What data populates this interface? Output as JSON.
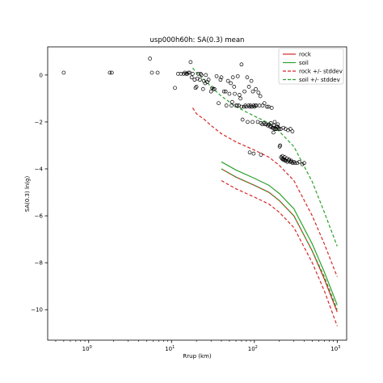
{
  "chart_data": {
    "type": "scatter",
    "title": "usp000h60h: SA(0.3) mean",
    "xlabel": "Rrup (km)",
    "ylabel": "SA(0.3) ln(g)",
    "xscale": "log",
    "xlim": [
      0.32,
      1300
    ],
    "ylim": [
      -11.3,
      1.2
    ],
    "xticks": [
      1,
      10,
      100,
      1000
    ],
    "xtick_labels": [
      "10^0",
      "10^1",
      "10^2",
      "10^3"
    ],
    "yticks": [
      0,
      -2,
      -4,
      -6,
      -8,
      -10
    ],
    "ytick_labels": [
      "0",
      "−2",
      "−4",
      "−6",
      "−8",
      "−10"
    ],
    "grid": false,
    "legend_position": "top-right",
    "series": [
      {
        "name": "rock",
        "kind": "line",
        "color": "#d62728",
        "dash": "solid",
        "x": [
          40,
          60,
          100,
          150,
          200,
          300,
          500,
          700,
          1000
        ],
        "y": [
          -4.0,
          -4.35,
          -4.7,
          -5.0,
          -5.35,
          -6.0,
          -7.5,
          -8.7,
          -10.1
        ]
      },
      {
        "name": "soil",
        "kind": "line",
        "color": "#2ca02c",
        "dash": "solid",
        "x": [
          40,
          60,
          100,
          150,
          200,
          300,
          500,
          700,
          1000
        ],
        "y": [
          -3.7,
          -4.05,
          -4.4,
          -4.7,
          -5.05,
          -5.7,
          -7.2,
          -8.4,
          -9.8
        ]
      },
      {
        "name": "rock +/- stddev",
        "kind": "line",
        "color": "#d62728",
        "dash": "dashed",
        "x": [
          18,
          20,
          25,
          30,
          40,
          60,
          100,
          150,
          200,
          300,
          500,
          700,
          1000
        ],
        "y": [
          -1.4,
          -1.65,
          -1.9,
          -2.15,
          -2.5,
          -2.85,
          -3.2,
          -3.5,
          -3.85,
          -4.5,
          -6.0,
          -7.2,
          -8.6
        ]
      },
      {
        "name": "rock +/- stddev lower",
        "kind": "line",
        "color": "#d62728",
        "dash": "dashed",
        "x": [
          40,
          60,
          100,
          150,
          200,
          300,
          500,
          700,
          1000
        ],
        "y": [
          -4.5,
          -4.85,
          -5.2,
          -5.5,
          -5.85,
          -6.5,
          -8.0,
          -9.2,
          -10.7
        ]
      },
      {
        "name": "soil +/- stddev",
        "kind": "line",
        "color": "#2ca02c",
        "dash": "dashed",
        "x": [
          18,
          20,
          25,
          30,
          40,
          60,
          100,
          150,
          200,
          300,
          500,
          700,
          1000
        ],
        "y": [
          0.3,
          0.1,
          -0.2,
          -0.5,
          -0.9,
          -1.35,
          -1.75,
          -2.05,
          -2.4,
          -3.05,
          -4.55,
          -5.85,
          -7.3
        ]
      },
      {
        "name": "soil +/- stddev lower",
        "kind": "line",
        "color": "#2ca02c",
        "dash": "dashed",
        "x": [
          40,
          60,
          100,
          150,
          200,
          300,
          500,
          700,
          1000
        ],
        "y": [
          -4.0,
          -4.35,
          -4.7,
          -5.0,
          -5.35,
          -6.0,
          -7.5,
          -8.6,
          -10.0
        ]
      },
      {
        "name": "",
        "kind": "scatter",
        "color": "#000000",
        "x": [
          0.5,
          1.8,
          1.9,
          5.5,
          5.8,
          6.8,
          12,
          13,
          14,
          14.5,
          15,
          15.5,
          16,
          17,
          18,
          19,
          20,
          21,
          22,
          23,
          24,
          26,
          28,
          30,
          32,
          35,
          37,
          40,
          43,
          46,
          50,
          53,
          55,
          58,
          60,
          62,
          65,
          68,
          70,
          72,
          75,
          78,
          80,
          83,
          85,
          88,
          90,
          93,
          95,
          98,
          100,
          103,
          106,
          110,
          115,
          120,
          125,
          130,
          135,
          140,
          145,
          150,
          155,
          160,
          165,
          170,
          175,
          180,
          185,
          190,
          195,
          200,
          205,
          210,
          215,
          220,
          225,
          230,
          235,
          240,
          250,
          260,
          270,
          280,
          290,
          300,
          310,
          330,
          350,
          380,
          400,
          11,
          16.5,
          19.5,
          22.5,
          27,
          33,
          45,
          52,
          63,
          76,
          92,
          104,
          118,
          132,
          148,
          162,
          176,
          192,
          208,
          224,
          238,
          255,
          272,
          288,
          17.5,
          24.5,
          31,
          39,
          48,
          57,
          66,
          86,
          96,
          112,
          126,
          142,
          158,
          172,
          186,
          202,
          218,
          232,
          246,
          262,
          278,
          98,
          88,
          120,
          170,
          70,
          20.5,
          25.5,
          54,
          82
        ],
        "y": [
          0.1,
          0.1,
          0.1,
          0.7,
          0.1,
          0.1,
          0.05,
          0.05,
          0.05,
          0.1,
          0.05,
          0.05,
          0.1,
          0.55,
          0.05,
          -0.2,
          -0.5,
          0.05,
          -0.2,
          0.0,
          -0.6,
          0.0,
          -0.2,
          -0.7,
          -0.6,
          -0.05,
          -1.2,
          -0.1,
          -0.7,
          -1.3,
          -0.8,
          -1.3,
          -0.1,
          -0.8,
          -1.3,
          -1.3,
          -1.3,
          -1.0,
          -1.35,
          -1.9,
          -1.35,
          -1.3,
          -1.35,
          -2.0,
          -1.3,
          -1.35,
          -1.3,
          -1.35,
          -2.0,
          -1.3,
          -1.35,
          -1.3,
          -1.3,
          -2.0,
          -1.3,
          -2.05,
          -2.1,
          -2.05,
          -2.1,
          -2.1,
          -2.15,
          -2.1,
          -2.2,
          -2.2,
          -2.25,
          -2.25,
          -2.3,
          -2.3,
          -2.3,
          -2.2,
          -2.25,
          -2.3,
          -3.0,
          -3.5,
          -3.55,
          -3.6,
          -3.6,
          -3.6,
          -3.65,
          -3.65,
          -3.7,
          -3.65,
          -3.7,
          -3.7,
          -3.75,
          -3.7,
          -3.75,
          -3.75,
          -3.7,
          -3.8,
          -3.75,
          -0.55,
          0.1,
          -0.55,
          0.05,
          -0.3,
          -0.6,
          -0.7,
          -0.35,
          -0.05,
          -0.7,
          -0.25,
          -0.6,
          -0.9,
          -1.2,
          -1.35,
          -1.4,
          -2.0,
          -2.1,
          -2.3,
          -2.25,
          -2.3,
          -2.35,
          -2.3,
          -2.4,
          -0.1,
          -0.25,
          -0.55,
          -0.2,
          -0.25,
          -0.5,
          -0.85,
          -0.5,
          -0.7,
          -0.75,
          -1.3,
          -1.35,
          -2.05,
          -2.15,
          -2.2,
          -3.05,
          -3.45,
          -3.5,
          -3.55,
          -3.6,
          -3.65,
          -3.35,
          -3.3,
          -3.4,
          -2.45,
          0.45,
          -0.15,
          -0.35,
          -1.15,
          -0.1
        ]
      }
    ]
  },
  "legend": {
    "items": [
      {
        "label": "rock",
        "color": "#d62728",
        "dash": "solid"
      },
      {
        "label": "soil",
        "color": "#2ca02c",
        "dash": "solid"
      },
      {
        "label": "rock +/- stddev",
        "color": "#d62728",
        "dash": "dashed"
      },
      {
        "label": "soil +/- stddev",
        "color": "#2ca02c",
        "dash": "dashed"
      }
    ]
  }
}
